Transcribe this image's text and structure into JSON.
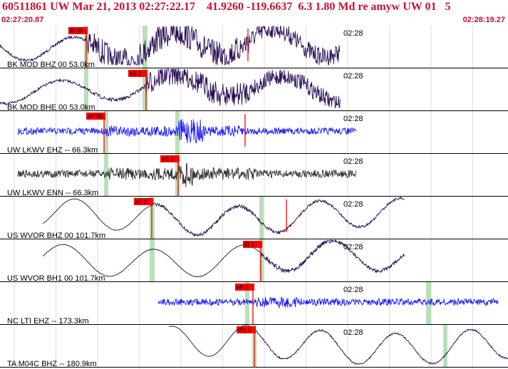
{
  "header": {
    "event_line": "60511861 UW Mar 21, 2013 02:27:22.17    41.9260 -119.6637  6.3 1.80 Md re amyw UW 01   5",
    "start_time": "02:27:20.87",
    "end_time": "02:28:19.27"
  },
  "minute_mark": "02:28",
  "colors": {
    "header_text": "#c8102e",
    "trace_dark": "#2a0d55",
    "trace_blue": "#1a1aff",
    "trace_gray": "#303030",
    "pick_box": "#ff0000",
    "window_band": "#9fd89f",
    "grid": "#c8c8c8",
    "border": "#000000"
  },
  "channels": [
    {
      "label": "BK MOD BHZ 00 53.0km",
      "pick": "iP 00",
      "color": "dark",
      "kind": "lowfreq"
    },
    {
      "label": "BK MOD BHE 00 53.0km",
      "pick": "eS 2",
      "color": "dark",
      "kind": "lowfreq"
    },
    {
      "label": "UW LKWV EHZ -- 66.3km",
      "pick": "eP 00",
      "color": "blue",
      "kind": "highfreq"
    },
    {
      "label": "UW LKWV ENN -- 66.3km",
      "pick": "eS 1",
      "color": "gray",
      "kind": "highfreq"
    },
    {
      "label": "US WVOR BHZ 00 101.7km",
      "pick": "eP 2",
      "color": "dark",
      "kind": "lowfreq"
    },
    {
      "label": "US WVOR BH1 00 101.7km",
      "pick": "iS 1",
      "color": "dark",
      "kind": "lowfreq"
    },
    {
      "label": "NC LTI EHZ -- 173.3km",
      "pick": "eP 2",
      "color": "blue",
      "kind": "highfreq"
    },
    {
      "label": "TA M04C BHZ -- 180.9km",
      "pick": "iPd 1",
      "color": "dark",
      "kind": "lowfreq"
    }
  ]
}
